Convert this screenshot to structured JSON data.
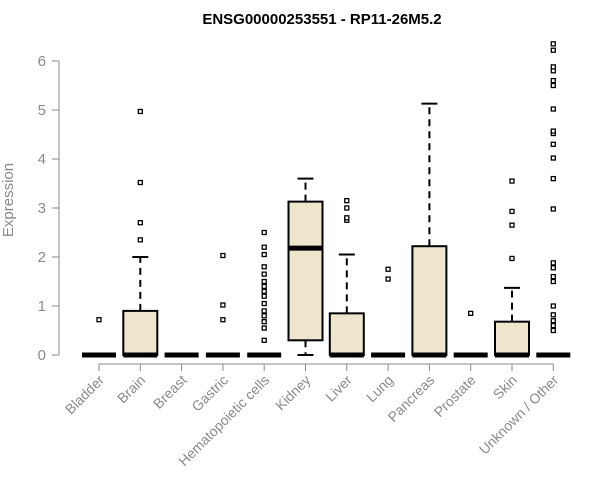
{
  "chart_data": {
    "type": "box",
    "title": "ENSG00000253551 - RP11-26M5.2",
    "xlabel": "",
    "ylabel": "Expression",
    "ylim": [
      0,
      6.5
    ],
    "yticks": [
      0,
      1,
      2,
      3,
      4,
      5,
      6
    ],
    "grid": false,
    "box_fill": "#ede6cc",
    "box_stroke": "#000000",
    "categories": [
      "Bladder",
      "Brain",
      "Breast",
      "Gastric",
      "Hematopoietic cells",
      "Kidney",
      "Liver",
      "Lung",
      "Pancreas",
      "Prostate",
      "Skin",
      "Unknown / Other"
    ],
    "boxes": [
      {
        "label": "Bladder",
        "lower_whisker": 0,
        "q1": 0,
        "median": 0,
        "q3": 0,
        "upper_whisker": 0,
        "outliers": [
          0.72
        ]
      },
      {
        "label": "Brain",
        "lower_whisker": 0,
        "q1": 0,
        "median": 0,
        "q3": 0.9,
        "upper_whisker": 2.0,
        "outliers": [
          2.35,
          2.7,
          3.52,
          4.97
        ]
      },
      {
        "label": "Breast",
        "lower_whisker": 0,
        "q1": 0,
        "median": 0,
        "q3": 0,
        "upper_whisker": 0,
        "outliers": []
      },
      {
        "label": "Gastric",
        "lower_whisker": 0,
        "q1": 0,
        "median": 0,
        "q3": 0,
        "upper_whisker": 0,
        "outliers": [
          0.72,
          1.02,
          2.03
        ]
      },
      {
        "label": "Hematopoietic cells",
        "lower_whisker": 0,
        "q1": 0,
        "median": 0,
        "q3": 0,
        "upper_whisker": 0,
        "outliers": [
          0.3,
          0.55,
          0.68,
          0.8,
          0.9,
          1.05,
          1.2,
          1.3,
          1.4,
          1.5,
          1.65,
          1.8,
          2.05,
          2.2,
          2.5
        ]
      },
      {
        "label": "Kidney",
        "lower_whisker": 0,
        "q1": 0.3,
        "median": 2.18,
        "q3": 3.13,
        "upper_whisker": 3.6,
        "outliers": []
      },
      {
        "label": "Liver",
        "lower_whisker": 0,
        "q1": 0,
        "median": 0,
        "q3": 0.85,
        "upper_whisker": 2.05,
        "outliers": [
          2.75,
          2.8,
          3.0,
          3.15
        ]
      },
      {
        "label": "Lung",
        "lower_whisker": 0,
        "q1": 0,
        "median": 0,
        "q3": 0,
        "upper_whisker": 0,
        "outliers": [
          1.55,
          1.75
        ]
      },
      {
        "label": "Pancreas",
        "lower_whisker": 0,
        "q1": 0,
        "median": 0,
        "q3": 2.22,
        "upper_whisker": 5.13,
        "outliers": []
      },
      {
        "label": "Prostate",
        "lower_whisker": 0,
        "q1": 0,
        "median": 0,
        "q3": 0,
        "upper_whisker": 0,
        "outliers": [
          0.85
        ]
      },
      {
        "label": "Skin",
        "lower_whisker": 0,
        "q1": 0,
        "median": 0,
        "q3": 0.68,
        "upper_whisker": 1.37,
        "outliers": [
          1.97,
          2.65,
          2.93,
          3.55
        ]
      },
      {
        "label": "Unknown / Other",
        "lower_whisker": 0,
        "q1": 0,
        "median": 0,
        "q3": 0,
        "upper_whisker": 0,
        "outliers": [
          0.5,
          0.6,
          0.7,
          0.82,
          1.0,
          1.5,
          1.6,
          1.78,
          1.88,
          2.98,
          3.6,
          4.02,
          4.3,
          4.52,
          4.57,
          5.02,
          5.5,
          5.6,
          5.8,
          5.88,
          6.22,
          6.35
        ]
      }
    ]
  }
}
